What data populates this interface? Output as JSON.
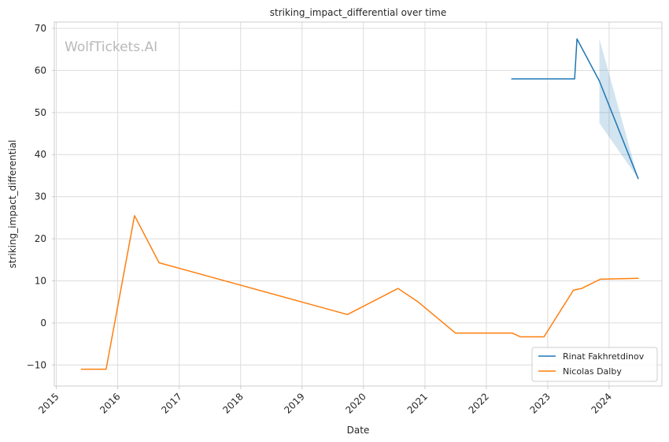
{
  "chart_data": {
    "type": "line",
    "title": "striking_impact_differential over time",
    "xlabel": "Date",
    "ylabel": "striking_impact_differential",
    "watermark": "WolfTickets.AI",
    "x_axis": {
      "kind": "date",
      "range": [
        "2014-12-20",
        "2024-11-10"
      ],
      "ticks": [
        "2015-01-01",
        "2016-01-01",
        "2017-01-01",
        "2018-01-01",
        "2019-01-01",
        "2020-01-01",
        "2021-01-01",
        "2022-01-01",
        "2023-01-01",
        "2024-01-01"
      ],
      "tick_labels": [
        "2015",
        "2016",
        "2017",
        "2018",
        "2019",
        "2020",
        "2021",
        "2022",
        "2023",
        "2024"
      ],
      "tick_rotation": 45
    },
    "y_axis": {
      "range": [
        -15,
        71.5
      ],
      "ticks": [
        -10,
        0,
        10,
        20,
        30,
        40,
        50,
        60,
        70
      ],
      "tick_labels": [
        "−10",
        "0",
        "10",
        "20",
        "30",
        "40",
        "50",
        "60",
        "70"
      ]
    },
    "grid": true,
    "legend": {
      "placement": "bottom-right"
    },
    "series": [
      {
        "name": "Rinat Fakhretdinov",
        "color": "#1f77b4",
        "points": [
          {
            "x": "2022-06-01",
            "y": 58.0
          },
          {
            "x": "2023-06-10",
            "y": 58.0
          },
          {
            "x": "2023-06-24",
            "y": 67.5
          },
          {
            "x": "2023-11-04",
            "y": 57.5
          },
          {
            "x": "2024-06-22",
            "y": 34.3
          }
        ],
        "band": [
          {
            "x": "2023-11-04",
            "low": 47.5,
            "high": 67.5
          },
          {
            "x": "2024-06-22",
            "low": 34.3,
            "high": 34.3
          }
        ]
      },
      {
        "name": "Nicolas Dalby",
        "color": "#ff7f0e",
        "points": [
          {
            "x": "2015-05-30",
            "y": -11.0
          },
          {
            "x": "2015-10-24",
            "y": -11.0
          },
          {
            "x": "2016-04-10",
            "y": 25.5
          },
          {
            "x": "2016-09-03",
            "y": 14.3
          },
          {
            "x": "2019-09-28",
            "y": 2.0
          },
          {
            "x": "2020-07-25",
            "y": 8.2
          },
          {
            "x": "2020-11-21",
            "y": 5.0
          },
          {
            "x": "2021-07-01",
            "y": -2.4
          },
          {
            "x": "2022-06-04",
            "y": -2.4
          },
          {
            "x": "2022-07-23",
            "y": -3.3
          },
          {
            "x": "2022-12-10",
            "y": -3.3
          },
          {
            "x": "2023-06-03",
            "y": 7.8
          },
          {
            "x": "2023-07-22",
            "y": 8.2
          },
          {
            "x": "2023-11-11",
            "y": 10.4
          },
          {
            "x": "2024-06-22",
            "y": 10.6
          }
        ]
      }
    ]
  }
}
